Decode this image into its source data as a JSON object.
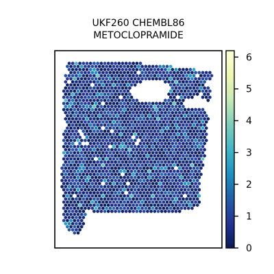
{
  "chart_data": {
    "type": "scatter",
    "title_lines": [
      "UKF260 CHEMBL86",
      "METOCLOPRAMIDE"
    ],
    "xlabel": "",
    "ylabel": "",
    "axes_ticks_visible": false,
    "grid": false,
    "marker": "hexagon",
    "colormap": "YlGnBu",
    "colorbar": {
      "min": 0,
      "max": 6.2,
      "ticks": [
        0,
        1,
        2,
        3,
        4,
        5,
        6
      ],
      "tick_labels": [
        "0",
        "1",
        "2",
        "3",
        "4",
        "5",
        "6"
      ],
      "placement": "right"
    },
    "value_distribution": {
      "dominant_range": [
        0,
        1.5
      ],
      "occasional_range": [
        1.5,
        3.5
      ]
    },
    "colors": {
      "low": "#081d58",
      "mid": "#225ea8",
      "high": "#41b6c4",
      "top": "#ffffd9"
    }
  }
}
